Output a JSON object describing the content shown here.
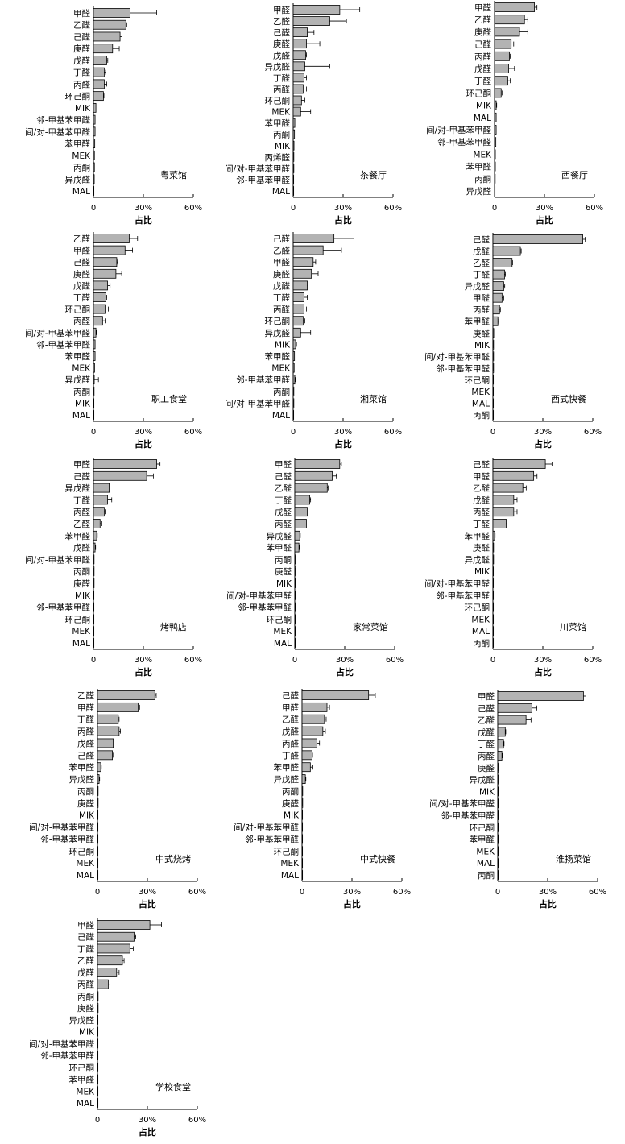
{
  "bar_color": "#b3b3b3",
  "axis_color": "#000000",
  "chart_data": [
    {
      "type": "bar",
      "orientation": "horizontal",
      "title": "粤菜馆",
      "xlabel": "占比",
      "xlim": [
        0,
        60
      ],
      "xticks": [
        "0",
        "30%",
        "60%"
      ],
      "categories": [
        "甲醛",
        "乙醛",
        "己醛",
        "庚醛",
        "戊醛",
        "丁醛",
        "丙醛",
        "环己酮",
        "MIK",
        "邻-甲基苯甲醛",
        "间/对-甲基苯甲醛",
        "苯甲醛",
        "MEK",
        "丙酮",
        "异戊醛",
        "MAL"
      ],
      "values": [
        22,
        19.5,
        16,
        11.5,
        8,
        6.5,
        6.5,
        6,
        1.5,
        1,
        1,
        0.8,
        0.6,
        0.6,
        0.5,
        0.3
      ],
      "errors": [
        16,
        0.5,
        1.2,
        4,
        0.6,
        0.8,
        1.5,
        0.3,
        0.2,
        0.2,
        0.2,
        0.1,
        0.1,
        0.1,
        0.1,
        0.1
      ]
    },
    {
      "type": "bar",
      "orientation": "horizontal",
      "title": "茶餐厅",
      "xlabel": "占比",
      "xlim": [
        0,
        60
      ],
      "xticks": [
        "0",
        "30%",
        "60%"
      ],
      "categories": [
        "甲醛",
        "乙醛",
        "己醛",
        "庚醛",
        "戊醛",
        "异戊醛",
        "丁醛",
        "丙醛",
        "环己酮",
        "MEK",
        "苯甲醛",
        "丙酮",
        "MIK",
        "丙烯醛",
        "间/对-甲基苯甲醛",
        "邻-甲基苯甲醛",
        "MAL"
      ],
      "values": [
        28,
        22,
        8.5,
        8,
        7.5,
        7,
        6.5,
        6,
        5,
        4.5,
        1,
        0.8,
        0.5,
        0.4,
        0.4,
        0.3,
        0.3
      ],
      "errors": [
        12,
        10,
        4,
        8,
        0.5,
        15,
        1.5,
        2,
        2,
        6,
        0.2,
        0.2,
        0.1,
        0.1,
        0.1,
        0.1,
        0.1
      ]
    },
    {
      "type": "bar",
      "orientation": "horizontal",
      "title": "西餐厅",
      "xlabel": "占比",
      "xlim": [
        0,
        60
      ],
      "xticks": [
        "0",
        "30%",
        "60%"
      ],
      "categories": [
        "甲醛",
        "乙醛",
        "庚醛",
        "己醛",
        "丙醛",
        "戊醛",
        "丁醛",
        "环己酮",
        "MIK",
        "MAL",
        "间/对-甲基苯甲醛",
        "邻-甲基苯甲醛",
        "MEK",
        "苯甲醛",
        "丙酮",
        "异戊醛"
      ],
      "values": [
        24,
        18,
        15,
        10,
        9,
        8.5,
        8,
        4,
        1,
        1,
        1,
        0.8,
        0.5,
        0.5,
        0.4,
        0.3
      ],
      "errors": [
        1.5,
        2,
        5,
        1.5,
        0.5,
        3.5,
        1.5,
        0.5,
        0.3,
        0.1,
        0.2,
        0.1,
        0.1,
        0.1,
        0.1,
        0.1
      ]
    },
    {
      "type": "bar",
      "orientation": "horizontal",
      "title": "职工食堂",
      "xlabel": "占比",
      "xlim": [
        0,
        60
      ],
      "xticks": [
        "0",
        "30%",
        "60%"
      ],
      "categories": [
        "乙醛",
        "甲醛",
        "己醛",
        "庚醛",
        "戊醛",
        "丁醛",
        "环己酮",
        "丙醛",
        "间/对-甲基苯甲醛",
        "邻-甲基苯甲醛",
        "苯甲醛",
        "MEK",
        "异戊醛",
        "丙酮",
        "MIK",
        "MAL"
      ],
      "values": [
        21.5,
        19,
        14,
        13.5,
        8.5,
        7.5,
        7,
        5.5,
        1.5,
        1,
        1,
        0.7,
        0.5,
        0.4,
        0.3,
        0.3
      ],
      "errors": [
        5,
        4.5,
        0.5,
        3.5,
        1.5,
        0.5,
        2,
        1.5,
        0.3,
        0.2,
        0.2,
        0.1,
        2.5,
        0.1,
        0.1,
        0.1
      ]
    },
    {
      "type": "bar",
      "orientation": "horizontal",
      "title": "湘菜馆",
      "xlabel": "占比",
      "xlim": [
        0,
        60
      ],
      "xticks": [
        "0",
        "30%",
        "60%"
      ],
      "categories": [
        "己醛",
        "乙醛",
        "甲醛",
        "庚醛",
        "戊醛",
        "丁醛",
        "丙醛",
        "环己酮",
        "异戊醛",
        "MIK",
        "苯甲醛",
        "MEK",
        "邻-甲基苯甲醛",
        "丙酮",
        "间/对-甲基苯甲醛",
        "MAL"
      ],
      "values": [
        24.5,
        18,
        12,
        11,
        8.5,
        6.5,
        6.5,
        6,
        4.5,
        1.5,
        0.8,
        0.6,
        1,
        0.4,
        0.4,
        0.3
      ],
      "errors": [
        12,
        11,
        1.5,
        4,
        0.5,
        2,
        1.5,
        1,
        6,
        0.5,
        0.1,
        0.1,
        0.3,
        0.1,
        0.1,
        0.1
      ]
    },
    {
      "type": "bar",
      "orientation": "horizontal",
      "title": "西式快餐",
      "xlabel": "占比",
      "xlim": [
        0,
        60
      ],
      "xticks": [
        "0",
        "30%",
        "60%"
      ],
      "categories": [
        "己醛",
        "戊醛",
        "乙醛",
        "丁醛",
        "异戊醛",
        "甲醛",
        "丙醛",
        "苯甲醛",
        "庚醛",
        "MIK",
        "间/对-甲基苯甲醛",
        "邻-甲基苯甲醛",
        "环己酮",
        "MEK",
        "MAL",
        "丙酮"
      ],
      "values": [
        54,
        16.5,
        11.5,
        7,
        6.5,
        5.5,
        4,
        3,
        0.5,
        0.4,
        0.4,
        0.4,
        0.3,
        0.3,
        0.3,
        0.3
      ],
      "errors": [
        1.5,
        0.5,
        0.3,
        0.5,
        0.6,
        1,
        0.5,
        0.5,
        0.1,
        0.1,
        0.1,
        0.1,
        0.1,
        0.1,
        0.1,
        0.1
      ]
    },
    {
      "type": "bar",
      "orientation": "horizontal",
      "title": "烤鸭店",
      "xlabel": "占比",
      "xlim": [
        0,
        60
      ],
      "xticks": [
        "0",
        "30%",
        "60%"
      ],
      "categories": [
        "甲醛",
        "己醛",
        "异戊醛",
        "丁醛",
        "丙醛",
        "乙醛",
        "苯甲醛",
        "戊醛",
        "间/对-甲基苯甲醛",
        "丙酮",
        "庚醛",
        "MIK",
        "邻-甲基苯甲醛",
        "环己酮",
        "MEK",
        "MAL"
      ],
      "values": [
        38,
        32,
        9.5,
        8.5,
        6.5,
        4,
        2,
        1,
        0.4,
        0.4,
        0.4,
        0.3,
        0.3,
        0.3,
        0.3,
        0.3
      ],
      "errors": [
        2,
        4,
        0.3,
        2.5,
        0.5,
        1,
        0.3,
        0.3,
        0.1,
        0.1,
        0.1,
        0.1,
        0.1,
        0.1,
        0.1,
        0.1
      ]
    },
    {
      "type": "bar",
      "orientation": "horizontal",
      "title": "家常菜馆",
      "xlabel": "占比",
      "xlim": [
        0,
        60
      ],
      "xticks": [
        "0",
        "30%",
        "60%"
      ],
      "categories": [
        "甲醛",
        "己醛",
        "乙醛",
        "丁醛",
        "戊醛",
        "丙醛",
        "异戊醛",
        "苯甲醛",
        "丙酮",
        "庚醛",
        "MIK",
        "间/对-甲基苯甲醛",
        "邻-甲基苯甲醛",
        "环己酮",
        "MEK",
        "MAL"
      ],
      "values": [
        27,
        22.5,
        19.5,
        9,
        7.5,
        7,
        3,
        2.5,
        0.4,
        0.4,
        0.3,
        0.3,
        0.3,
        0.3,
        0.3,
        0.3
      ],
      "errors": [
        1,
        2.5,
        0.5,
        0.5,
        0.2,
        0.2,
        0.3,
        0.3,
        0.1,
        0.1,
        0.1,
        0.1,
        0.1,
        0.1,
        0.1,
        0.1
      ]
    },
    {
      "type": "bar",
      "orientation": "horizontal",
      "title": "川菜馆",
      "xlabel": "占比",
      "xlim": [
        0,
        60
      ],
      "xticks": [
        "0",
        "30%",
        "60%"
      ],
      "categories": [
        "己醛",
        "甲醛",
        "乙醛",
        "戊醛",
        "丙醛",
        "丁醛",
        "苯甲醛",
        "庚醛",
        "异戊醛",
        "MIK",
        "间/对-甲基苯甲醛",
        "邻-甲基苯甲醛",
        "环己酮",
        "MEK",
        "MAL",
        "丙酮"
      ],
      "values": [
        31.5,
        24.5,
        18,
        12.5,
        12.5,
        8,
        1,
        0.4,
        0.4,
        0.3,
        0.3,
        0.3,
        0.3,
        0.3,
        0.3,
        0.3
      ],
      "errors": [
        4,
        2,
        2,
        2,
        2,
        0.5,
        0.3,
        0.1,
        0.1,
        0.1,
        0.1,
        0.1,
        0.1,
        0.1,
        0.1,
        0.1
      ]
    },
    {
      "type": "bar",
      "orientation": "horizontal",
      "title": "中式烧烤",
      "xlabel": "占比",
      "xlim": [
        0,
        60
      ],
      "xticks": [
        "0",
        "30%",
        "60%"
      ],
      "categories": [
        "乙醛",
        "甲醛",
        "丁醛",
        "丙醛",
        "戊醛",
        "己醛",
        "苯甲醛",
        "异戊醛",
        "丙酮",
        "庚醛",
        "MIK",
        "间/对-甲基苯甲醛",
        "邻-甲基苯甲醛",
        "环己酮",
        "MEK",
        "MAL"
      ],
      "values": [
        34.5,
        24.5,
        12.5,
        13,
        9.5,
        9,
        2,
        1,
        0.4,
        0.4,
        0.3,
        0.3,
        0.3,
        0.3,
        0.3,
        0.3
      ],
      "errors": [
        0.8,
        0.8,
        0.5,
        0.8,
        0.3,
        0.3,
        0.3,
        0.3,
        0.1,
        0.1,
        0.1,
        0.1,
        0.1,
        0.1,
        0.1,
        0.1
      ]
    },
    {
      "type": "bar",
      "orientation": "horizontal",
      "title": "中式快餐",
      "xlabel": "占比",
      "xlim": [
        0,
        60
      ],
      "xticks": [
        "0",
        "30%",
        "60%"
      ],
      "categories": [
        "己醛",
        "甲醛",
        "乙醛",
        "戊醛",
        "丙醛",
        "丁醛",
        "苯甲醛",
        "异戊醛",
        "丙酮",
        "庚醛",
        "MIK",
        "间/对-甲基苯甲醛",
        "邻-甲基苯甲醛",
        "环己酮",
        "MEK",
        "MAL"
      ],
      "values": [
        40,
        15,
        13.5,
        12.5,
        9,
        6,
        5,
        2,
        0.4,
        0.4,
        0.3,
        0.3,
        0.3,
        0.3,
        0.3,
        0.3
      ],
      "errors": [
        4,
        1.5,
        1,
        1.5,
        1.5,
        0.3,
        1.5,
        0.3,
        0.1,
        0.1,
        0.1,
        0.1,
        0.1,
        0.1,
        0.1,
        0.1
      ]
    },
    {
      "type": "bar",
      "orientation": "horizontal",
      "title": "淮扬菜馆",
      "xlabel": "占比",
      "xlim": [
        0,
        60
      ],
      "xticks": [
        "0",
        "30%",
        "60%"
      ],
      "categories": [
        "甲醛",
        "己醛",
        "乙醛",
        "戊醛",
        "丁醛",
        "丙醛",
        "庚醛",
        "异戊醛",
        "MIK",
        "间/对-甲基苯甲醛",
        "邻-甲基苯甲醛",
        "环己酮",
        "苯甲醛",
        "MEK",
        "MAL",
        "丙酮"
      ],
      "values": [
        51.5,
        20.5,
        17,
        4.5,
        3.5,
        2.5,
        0.4,
        0.4,
        0.3,
        0.3,
        0.3,
        0.3,
        0.3,
        0.3,
        0.3,
        0.3
      ],
      "errors": [
        1.5,
        3,
        3,
        0.3,
        0.3,
        0.3,
        0.1,
        0.1,
        0.1,
        0.1,
        0.1,
        0.1,
        0.1,
        0.1,
        0.1,
        0.1
      ]
    },
    {
      "type": "bar",
      "orientation": "horizontal",
      "title": "学校食堂",
      "xlabel": "占比",
      "xlim": [
        0,
        60
      ],
      "xticks": [
        "0",
        "30%",
        "60%"
      ],
      "categories": [
        "甲醛",
        "己醛",
        "丁醛",
        "乙醛",
        "戊醛",
        "丙醛",
        "丙酮",
        "庚醛",
        "异戊醛",
        "MIK",
        "间/对-甲基苯甲醛",
        "邻-甲基苯甲醛",
        "环己酮",
        "苯甲醛",
        "MEK",
        "MAL"
      ],
      "values": [
        31.5,
        22,
        19.5,
        15,
        11.5,
        6.5,
        0.4,
        0.4,
        0.3,
        0.3,
        0.3,
        0.3,
        0.3,
        0.3,
        0.3,
        0.3
      ],
      "errors": [
        7,
        1,
        2,
        1,
        1.5,
        1,
        0.1,
        0.1,
        0.1,
        0.1,
        0.1,
        0.1,
        0.1,
        0.1,
        0.1,
        0.1
      ]
    }
  ]
}
